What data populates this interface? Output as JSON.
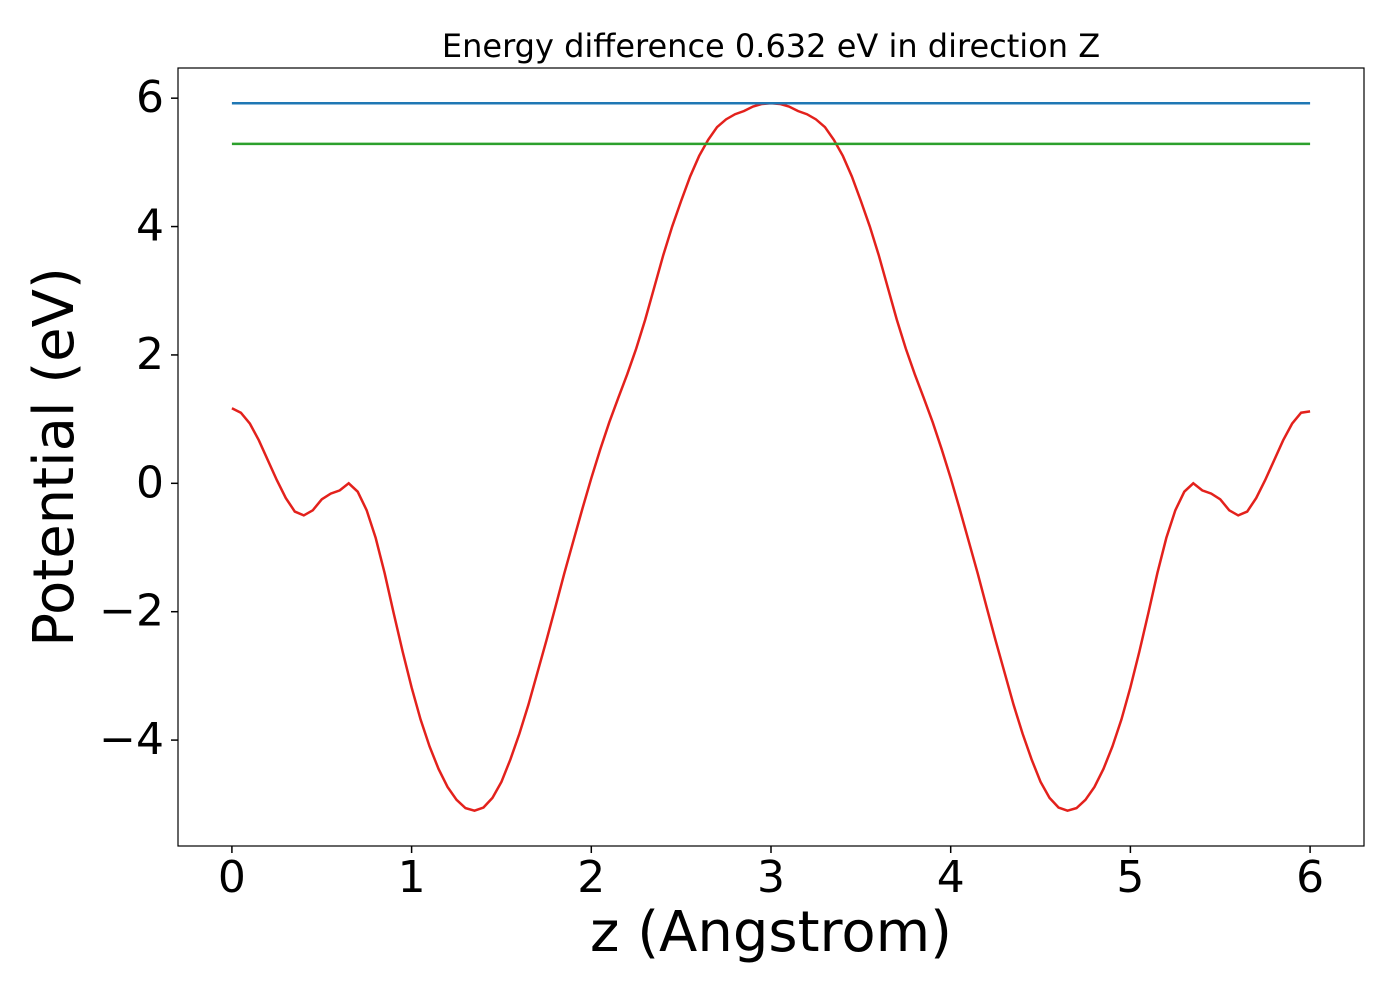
{
  "chart_data": {
    "type": "line",
    "title": "Energy difference 0.632 eV in direction Z",
    "xlabel": "z (Angstrom)",
    "ylabel": "Potential (eV)",
    "xlim": [
      -0.3,
      6.3
    ],
    "ylim": [
      -5.65,
      6.47
    ],
    "xticks": [
      0,
      1,
      2,
      3,
      4,
      5,
      6
    ],
    "yticks": [
      {
        "value": -4,
        "label": "−4"
      },
      {
        "value": -2,
        "label": "−2"
      },
      0,
      2,
      4,
      6
    ],
    "grid": false,
    "series": [
      {
        "color": "#e3211c",
        "x": [
          0,
          0.05,
          0.1,
          0.15,
          0.2,
          0.25,
          0.3,
          0.35,
          0.4,
          0.45,
          0.5,
          0.55,
          0.6,
          0.65,
          0.7,
          0.75,
          0.8,
          0.85,
          0.9,
          0.95,
          1,
          1.05,
          1.1,
          1.15,
          1.2,
          1.25,
          1.3,
          1.35,
          1.4,
          1.45,
          1.5,
          1.55,
          1.6,
          1.65,
          1.7,
          1.75,
          1.8,
          1.85,
          1.9,
          1.95,
          2,
          2.05,
          2.1,
          2.15,
          2.2,
          2.25,
          2.3,
          2.35,
          2.4,
          2.45,
          2.5,
          2.55,
          2.6,
          2.65,
          2.7,
          2.75,
          2.8,
          2.85,
          2.9,
          2.95,
          3,
          3.05,
          3.1,
          3.15,
          3.2,
          3.25,
          3.3,
          3.35,
          3.4,
          3.45,
          3.5,
          3.55,
          3.6,
          3.65,
          3.7,
          3.75,
          3.8,
          3.85,
          3.9,
          3.95,
          4,
          4.05,
          4.1,
          4.15,
          4.2,
          4.25,
          4.3,
          4.35,
          4.4,
          4.45,
          4.5,
          4.55,
          4.6,
          4.65,
          4.7,
          4.75,
          4.8,
          4.85,
          4.9,
          4.95,
          5,
          5.05,
          5.1,
          5.15,
          5.2,
          5.25,
          5.3,
          5.35,
          5.4,
          5.45,
          5.5,
          5.55,
          5.6,
          5.65,
          5.7,
          5.75,
          5.8,
          5.85,
          5.9,
          5.95,
          6
        ],
        "values": [
          1.17,
          1.1,
          0.93,
          0.67,
          0.36,
          0.05,
          -0.23,
          -0.44,
          -0.5,
          -0.42,
          -0.25,
          -0.16,
          -0.11,
          0.0,
          -0.13,
          -0.42,
          -0.85,
          -1.4,
          -2.02,
          -2.62,
          -3.18,
          -3.68,
          -4.1,
          -4.45,
          -4.73,
          -4.93,
          -5.06,
          -5.1,
          -5.05,
          -4.9,
          -4.65,
          -4.3,
          -3.9,
          -3.45,
          -2.95,
          -2.45,
          -1.93,
          -1.4,
          -0.9,
          -0.4,
          0.08,
          0.53,
          0.95,
          1.33,
          1.7,
          2.1,
          2.55,
          3.05,
          3.55,
          4.0,
          4.4,
          4.78,
          5.1,
          5.35,
          5.55,
          5.67,
          5.75,
          5.8,
          5.87,
          5.91,
          5.92,
          5.91,
          5.87,
          5.8,
          5.75,
          5.67,
          5.55,
          5.35,
          5.1,
          4.78,
          4.4,
          4.0,
          3.55,
          3.05,
          2.55,
          2.1,
          1.7,
          1.33,
          0.95,
          0.53,
          0.08,
          -0.4,
          -0.9,
          -1.4,
          -1.93,
          -2.45,
          -2.95,
          -3.45,
          -3.9,
          -4.3,
          -4.65,
          -4.9,
          -5.05,
          -5.1,
          -5.06,
          -4.93,
          -4.73,
          -4.45,
          -4.1,
          -3.68,
          -3.18,
          -2.62,
          -2.02,
          -1.4,
          -0.85,
          -0.42,
          -0.13,
          0.0,
          -0.11,
          -0.16,
          -0.25,
          -0.42,
          -0.5,
          -0.44,
          -0.23,
          0.05,
          0.36,
          0.67,
          0.93,
          1.1,
          1.12
        ]
      },
      {
        "color": "#1f77b4",
        "x": [
          0,
          6
        ],
        "values": [
          5.92,
          5.92
        ]
      },
      {
        "color": "#2ca02c",
        "x": [
          0,
          6
        ],
        "values": [
          5.288,
          5.288
        ]
      }
    ]
  }
}
